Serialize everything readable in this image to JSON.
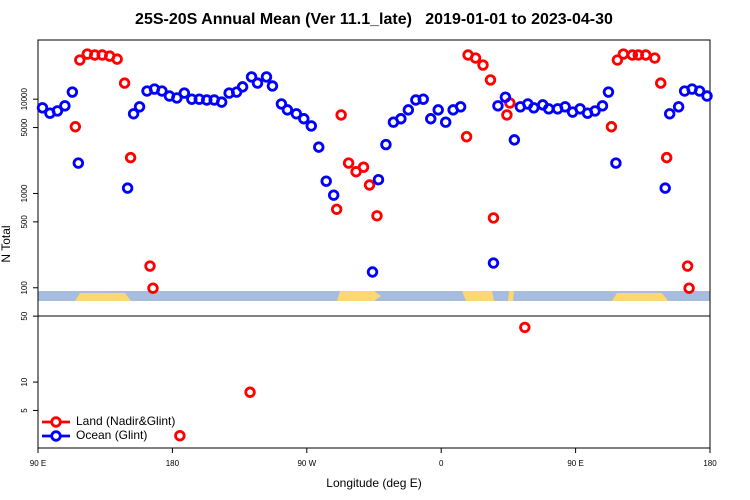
{
  "chart_data": {
    "type": "scatter",
    "title": "25S-20S Annual Mean (Ver 11.1_late)   2019-01-01 to 2023-04-30",
    "xlabel": "Longitude (deg E)",
    "ylabel": "N Total",
    "xlim": [
      90,
      540
    ],
    "xticks": [
      {
        "value": 90,
        "label": "90 E"
      },
      180,
      {
        "value": 270,
        "label": "90 W"
      },
      0,
      {
        "value": 450,
        "label": "90 E"
      },
      180
    ],
    "ylim": [
      2,
      42400
    ],
    "log_y": true,
    "yticks": [
      5,
      10,
      50,
      100,
      500,
      1000,
      5000,
      10000
    ],
    "legend": "lower left",
    "series": [
      {
        "name": "Land (Nadir&Glint)",
        "color": "#ff0000",
        "x": [
          115,
          118,
          123,
          128,
          133,
          138,
          143,
          148,
          152,
          165,
          167,
          185,
          232,
          290,
          293,
          298,
          303,
          308,
          312,
          317,
          377,
          378,
          383,
          388,
          393,
          395,
          404,
          406,
          416,
          474,
          478,
          482,
          488,
          492,
          497,
          503,
          507,
          511,
          525,
          526
        ],
        "values": [
          5100,
          26000,
          30100,
          29400,
          29400,
          28600,
          26600,
          14800,
          2400,
          170,
          99,
          2.7,
          7.8,
          680,
          6800,
          2100,
          1700,
          1900,
          1230,
          580,
          4000,
          29400,
          27300,
          23000,
          16000,
          550,
          6800,
          9100,
          38,
          5100,
          26000,
          30100,
          29400,
          29400,
          29400,
          27300,
          14800,
          2400,
          170,
          99
        ]
      },
      {
        "name": "Ocean (Glint)",
        "color": "#0000ff",
        "x": [
          93,
          98,
          103,
          108,
          113,
          117,
          150,
          154,
          158,
          163,
          168,
          173,
          178,
          183,
          188,
          193,
          198,
          203,
          208,
          213,
          218,
          223,
          227,
          233,
          237,
          243,
          247,
          253,
          257,
          263,
          268,
          273,
          278,
          283,
          288,
          314,
          318,
          323,
          328,
          333,
          338,
          343,
          348,
          353,
          358,
          363,
          368,
          373,
          395,
          398,
          403,
          409,
          413,
          418,
          422,
          428,
          432,
          438,
          443,
          448,
          453,
          458,
          463,
          468,
          472,
          477,
          510,
          513,
          519,
          523,
          528,
          533,
          538
        ],
        "values": [
          8100,
          7100,
          7500,
          8500,
          11900,
          2100,
          1140,
          7000,
          8300,
          12200,
          12800,
          12200,
          10800,
          10300,
          11600,
          10000,
          10000,
          9800,
          9800,
          9300,
          11600,
          11900,
          13500,
          17200,
          14800,
          17200,
          13800,
          8900,
          7700,
          7000,
          6200,
          5200,
          3100,
          1350,
          960,
          147,
          1400,
          3300,
          5700,
          6200,
          7700,
          9800,
          10000,
          6200,
          7700,
          5700,
          7700,
          8300,
          183,
          8500,
          10500,
          3700,
          8300,
          8900,
          8100,
          8700,
          7900,
          7900,
          8300,
          7300,
          7900,
          7100,
          7500,
          8500,
          11900,
          2100,
          1140,
          7000,
          8300,
          12200,
          12800,
          12200,
          10800
        ]
      }
    ]
  }
}
